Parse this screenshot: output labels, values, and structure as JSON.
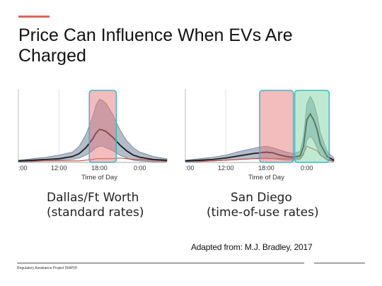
{
  "slide": {
    "title": "Price Can Influence When EVs Are Charged",
    "source": "Adapted from: M.J. Bradley, 2017",
    "footer": "Regulatory Assistance Project (RAP)®"
  },
  "colors": {
    "accent": "#e0655a",
    "band": "#9aa7b8",
    "median": "#1a1a1a",
    "highlight_red": "#e8797b",
    "highlight_green": "#7fd6a4",
    "highlight_border": "#3ab8c4"
  },
  "chart_data": [
    {
      "type": "area",
      "caption": [
        "Dallas/Ft Worth",
        "(standard rates)"
      ],
      "xlabel": "Time of Day",
      "x_ticks": [
        ":00",
        "12:00",
        "18:00",
        "0:00"
      ],
      "x_tick_hours": [
        6,
        12,
        18,
        24
      ],
      "xlim": [
        6,
        28
      ],
      "ylim": [
        0,
        1
      ],
      "x": [
        6,
        8,
        10,
        12,
        14,
        15,
        16,
        17,
        17.5,
        18,
        18.5,
        19,
        20,
        21,
        22,
        23,
        24,
        26,
        28
      ],
      "series": [
        {
          "role": "upper",
          "values": [
            0.03,
            0.05,
            0.07,
            0.1,
            0.14,
            0.22,
            0.38,
            0.62,
            0.78,
            0.86,
            0.84,
            0.8,
            0.65,
            0.45,
            0.3,
            0.2,
            0.14,
            0.08,
            0.05
          ]
        },
        {
          "role": "lower",
          "values": [
            0.01,
            0.01,
            0.02,
            0.03,
            0.04,
            0.06,
            0.1,
            0.16,
            0.2,
            0.22,
            0.22,
            0.2,
            0.16,
            0.1,
            0.06,
            0.03,
            0.02,
            0.01,
            0.01
          ]
        },
        {
          "role": "median",
          "values": [
            0.02,
            0.03,
            0.04,
            0.05,
            0.08,
            0.12,
            0.2,
            0.32,
            0.4,
            0.45,
            0.44,
            0.42,
            0.34,
            0.24,
            0.16,
            0.1,
            0.07,
            0.04,
            0.03
          ]
        },
        {
          "role": "price",
          "values": [
            0.02,
            0.02,
            0.02,
            0.02,
            0.02,
            0.02,
            0.03,
            0.04,
            0.05,
            0.05,
            0.05,
            0.05,
            0.05,
            0.06,
            0.05,
            0.04,
            0.04,
            0.03,
            0.02
          ]
        }
      ],
      "highlights": [
        {
          "color": "red",
          "from": 16.5,
          "to": 20.5
        }
      ]
    },
    {
      "type": "area",
      "caption": [
        "San Diego",
        "(time-of-use rates)"
      ],
      "xlabel": "Time of Day",
      "x_ticks": [
        ":00",
        "12:00",
        "18:00",
        "0:00"
      ],
      "x_tick_hours": [
        6,
        12,
        18,
        24
      ],
      "xlim": [
        6,
        28
      ],
      "ylim": [
        0,
        1
      ],
      "x": [
        6,
        8,
        10,
        12,
        14,
        16,
        17,
        18,
        19,
        20,
        21,
        22,
        23,
        23.5,
        24,
        24.5,
        25,
        25.5,
        26,
        27,
        28
      ],
      "series": [
        {
          "role": "upper",
          "values": [
            0.03,
            0.05,
            0.07,
            0.1,
            0.15,
            0.19,
            0.21,
            0.22,
            0.2,
            0.17,
            0.14,
            0.12,
            0.15,
            0.35,
            0.8,
            0.9,
            0.82,
            0.65,
            0.4,
            0.15,
            0.06
          ]
        },
        {
          "role": "lower",
          "values": [
            0.01,
            0.01,
            0.02,
            0.03,
            0.04,
            0.05,
            0.06,
            0.06,
            0.05,
            0.04,
            0.03,
            0.03,
            0.04,
            0.1,
            0.3,
            0.36,
            0.3,
            0.2,
            0.1,
            0.03,
            0.01
          ]
        },
        {
          "role": "median",
          "values": [
            0.02,
            0.03,
            0.04,
            0.06,
            0.09,
            0.12,
            0.13,
            0.14,
            0.13,
            0.1,
            0.08,
            0.07,
            0.09,
            0.22,
            0.58,
            0.66,
            0.58,
            0.45,
            0.25,
            0.08,
            0.03
          ]
        },
        {
          "role": "price",
          "values": [
            0.02,
            0.02,
            0.02,
            0.03,
            0.04,
            0.05,
            0.05,
            0.05,
            0.05,
            0.05,
            0.05,
            0.05,
            0.06,
            0.12,
            0.22,
            0.2,
            0.18,
            0.16,
            0.1,
            0.04,
            0.02
          ]
        }
      ],
      "note": "",
      "highlights": [
        {
          "color": "red",
          "from": 17,
          "to": 22
        },
        {
          "color": "green",
          "from": 22.2,
          "to": 27.3
        }
      ]
    }
  ]
}
